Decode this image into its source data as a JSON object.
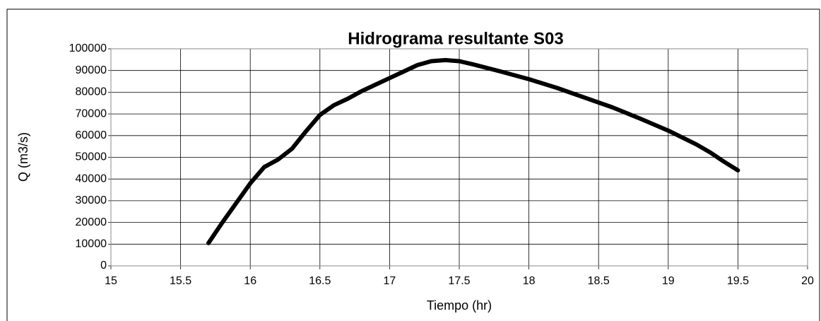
{
  "chart_data": {
    "type": "line",
    "title": "Hidrograma resultante S03",
    "x_label": "Tiempo (hr)",
    "y_label": "Q (m3/s)",
    "x": [
      15.7,
      15.8,
      15.9,
      16.0,
      16.1,
      16.2,
      16.3,
      16.4,
      16.5,
      16.6,
      16.7,
      16.8,
      16.9,
      17.0,
      17.1,
      17.2,
      17.3,
      17.4,
      17.5,
      17.6,
      17.8,
      18.0,
      18.2,
      18.4,
      18.6,
      18.8,
      19.0,
      19.2,
      19.3,
      19.4,
      19.5
    ],
    "series": [
      {
        "name": "Q",
        "color": "#000000",
        "values": [
          10500,
          20000,
          29000,
          38000,
          45500,
          49000,
          54000,
          62000,
          69500,
          74000,
          77000,
          80500,
          83500,
          86500,
          89500,
          92500,
          94300,
          94800,
          94300,
          92800,
          89500,
          86000,
          82000,
          77500,
          73000,
          67800,
          62300,
          56000,
          52300,
          48000,
          44000
        ]
      }
    ],
    "xlim": [
      15,
      20
    ],
    "xticks": [
      15,
      15.5,
      16,
      16.5,
      17,
      17.5,
      18,
      18.5,
      19,
      19.5,
      20
    ],
    "ylim": [
      0,
      100000
    ],
    "yticks": [
      0,
      10000,
      20000,
      30000,
      40000,
      50000,
      60000,
      70000,
      80000,
      90000,
      100000
    ],
    "grid": true
  }
}
